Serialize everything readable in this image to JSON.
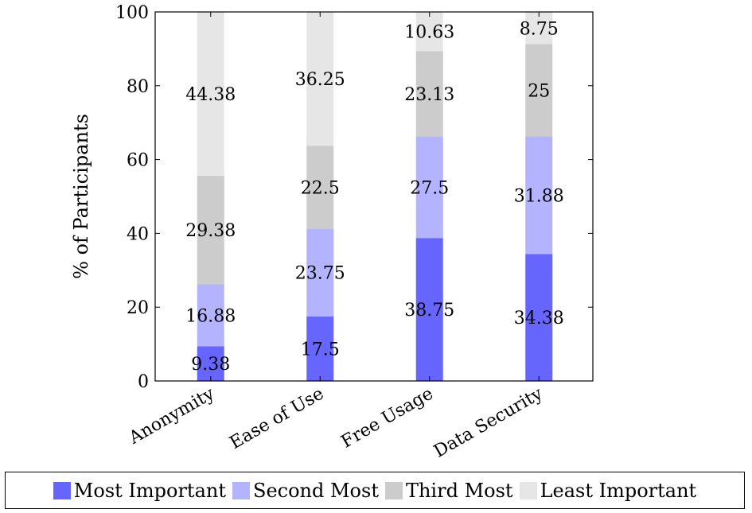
{
  "chart_data": {
    "type": "bar",
    "stacked": true,
    "categories": [
      "Anonymity",
      "Ease of Use",
      "Free Usage",
      "Data Security"
    ],
    "series": [
      {
        "name": "Most Important",
        "color": "#6666ff",
        "values": [
          9.38,
          17.5,
          38.75,
          34.38
        ],
        "labels": [
          "9.38",
          "17.5",
          "38.75",
          "34.38"
        ]
      },
      {
        "name": "Second Most",
        "color": "#b3b3ff",
        "values": [
          16.88,
          23.75,
          27.5,
          31.88
        ],
        "labels": [
          "16.88",
          "23.75",
          "27.5",
          "31.88"
        ]
      },
      {
        "name": "Third Most",
        "color": "#cccccc",
        "values": [
          29.38,
          22.5,
          23.13,
          25
        ],
        "labels": [
          "29.38",
          "22.5",
          "23.13",
          "25"
        ]
      },
      {
        "name": "Least Important",
        "color": "#e6e6e6",
        "values": [
          44.38,
          36.25,
          10.63,
          8.75
        ],
        "labels": [
          "44.38",
          "36.25",
          "10.63",
          "8.75"
        ]
      }
    ],
    "title": "",
    "xlabel": "",
    "ylabel": "% of Participants",
    "ylim": [
      0,
      100
    ],
    "yticks": [
      0,
      20,
      40,
      60,
      80,
      100
    ],
    "ytick_labels": [
      "0",
      "20",
      "40",
      "60",
      "80",
      "100"
    ],
    "grid": false,
    "legend_position": "bottom"
  }
}
